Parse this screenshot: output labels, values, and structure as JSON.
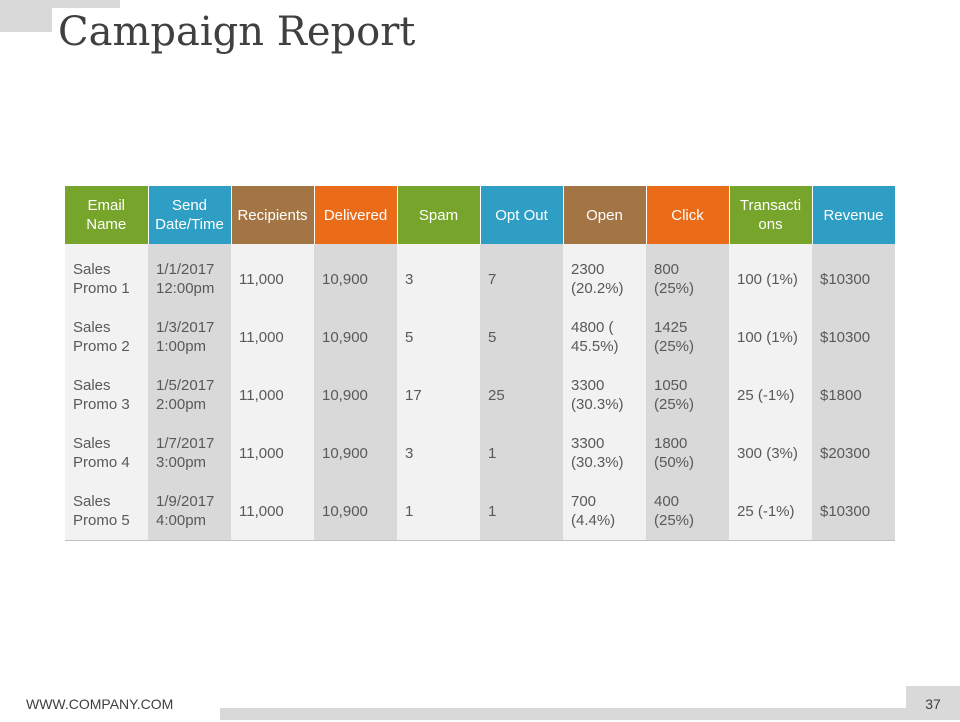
{
  "title": "Campaign Report",
  "headers": [
    {
      "label": "Email Name",
      "color": "#77a42b"
    },
    {
      "label": "Send Date/Time",
      "color": "#2e9ec4"
    },
    {
      "label": "Recipients",
      "color": "#a47544"
    },
    {
      "label": "Delivered",
      "color": "#ea6b18"
    },
    {
      "label": "Spam",
      "color": "#77a42b"
    },
    {
      "label": "Opt Out",
      "color": "#2e9ec4"
    },
    {
      "label": "Open",
      "color": "#a47544"
    },
    {
      "label": "Click",
      "color": "#ea6b18"
    },
    {
      "label": "Transacti ons",
      "color": "#77a42b"
    },
    {
      "label": "Revenue",
      "color": "#2e9ec4"
    }
  ],
  "rows": [
    [
      "Sales Promo 1",
      "1/1/2017 12:00pm",
      "11,000",
      "10,900",
      "3",
      "7",
      "2300 (20.2%)",
      "800 (25%)",
      "100 (1%)",
      "$10300"
    ],
    [
      "Sales Promo 2",
      "1/3/2017 1:00pm",
      "11,000",
      "10,900",
      "5",
      "5",
      "4800 ( 45.5%)",
      "1425 (25%)",
      "100 (1%)",
      "$10300"
    ],
    [
      "Sales Promo 3",
      "1/5/2017 2:00pm",
      "11,000",
      "10,900",
      "17",
      "25",
      "3300 (30.3%)",
      "1050 (25%)",
      "25 (-1%)",
      "$1800"
    ],
    [
      "Sales Promo 4",
      "1/7/2017 3:00pm",
      "11,000",
      "10,900",
      "3",
      "1",
      "3300 (30.3%)",
      "1800 (50%)",
      "300 (3%)",
      "$20300"
    ],
    [
      "Sales Promo 5",
      "1/9/2017 4:00pm",
      "11,000",
      "10,900",
      "1",
      "1",
      "700 (4.4%)",
      "400 (25%)",
      "25 (-1%)",
      "$10300"
    ]
  ],
  "footer": {
    "website": "WWW.COMPANY.COM",
    "page_number": "37"
  }
}
